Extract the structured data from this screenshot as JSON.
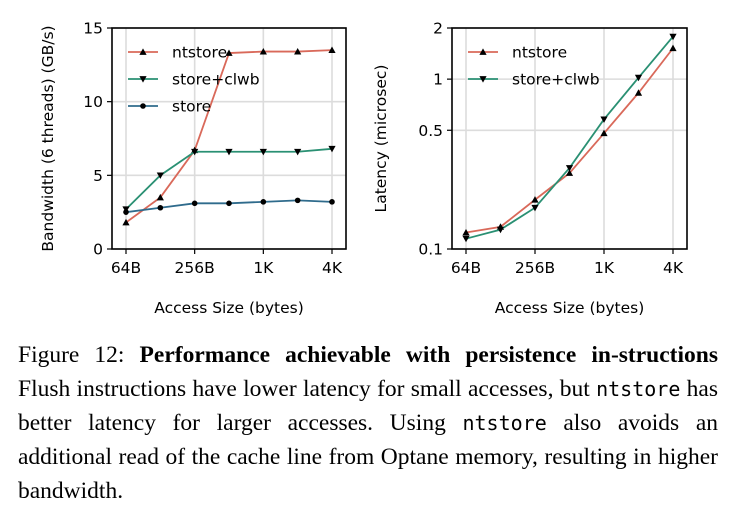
{
  "chart_data": [
    {
      "type": "line",
      "x_positions": [
        0,
        1,
        2,
        3,
        4,
        5,
        6
      ],
      "xticks": [
        "64B",
        "256B",
        "1K",
        "4K"
      ],
      "xtick_positions": [
        0,
        2,
        4,
        6
      ],
      "xlabel": "Access Size (bytes)",
      "ylabel": "Bandwidth (6 threads) (GB/s)",
      "yticks": [
        "0",
        "5",
        "10",
        "15"
      ],
      "ylim": [
        0,
        15
      ],
      "grid": true,
      "legend_position": "top-left",
      "series": [
        {
          "name": "ntstore",
          "color": "#d9695a",
          "marker": "triangle-up",
          "values": [
            1.8,
            3.5,
            6.7,
            13.3,
            13.4,
            13.4,
            13.5
          ]
        },
        {
          "name": "store+clwb",
          "color": "#2a9073",
          "marker": "triangle-down",
          "values": [
            2.7,
            5.0,
            6.6,
            6.6,
            6.6,
            6.6,
            6.8
          ]
        },
        {
          "name": "store",
          "color": "#2f6b8c",
          "marker": "circle",
          "values": [
            2.5,
            2.8,
            3.1,
            3.1,
            3.2,
            3.3,
            3.2
          ]
        }
      ]
    },
    {
      "type": "line",
      "x_positions": [
        0,
        1,
        2,
        3,
        4,
        5,
        6
      ],
      "xticks": [
        "64B",
        "256B",
        "1K",
        "4K"
      ],
      "xtick_positions": [
        0,
        2,
        4,
        6
      ],
      "xlabel": "Access Size (bytes)",
      "ylabel": "Latency (microsec)",
      "yscale": "log",
      "yticks": [
        "0.1",
        "0.5",
        "1",
        "2"
      ],
      "ytick_values": [
        0.1,
        0.5,
        1,
        2
      ],
      "ylim": [
        0.1,
        2
      ],
      "grid": true,
      "legend_position": "top-left",
      "series": [
        {
          "name": "ntstore",
          "color": "#d9695a",
          "marker": "triangle-up",
          "values": [
            0.125,
            0.135,
            0.195,
            0.28,
            0.48,
            0.83,
            1.52
          ]
        },
        {
          "name": "store+clwb",
          "color": "#2a9073",
          "marker": "triangle-down",
          "values": [
            0.115,
            0.13,
            0.175,
            0.3,
            0.58,
            1.02,
            1.78
          ]
        }
      ]
    }
  ],
  "caption": {
    "prefix": "Figure 12: ",
    "bold": "Performance achievable with persistence in-structions",
    "seg1": " Flush instructions have lower latency for small accesses, but ",
    "code1": "ntstore",
    "seg2": " has better latency for larger accesses. Using ",
    "code2": "ntstore",
    "seg3": " also avoids an additional read of the cache line from Optane memory, resulting in higher bandwidth."
  }
}
